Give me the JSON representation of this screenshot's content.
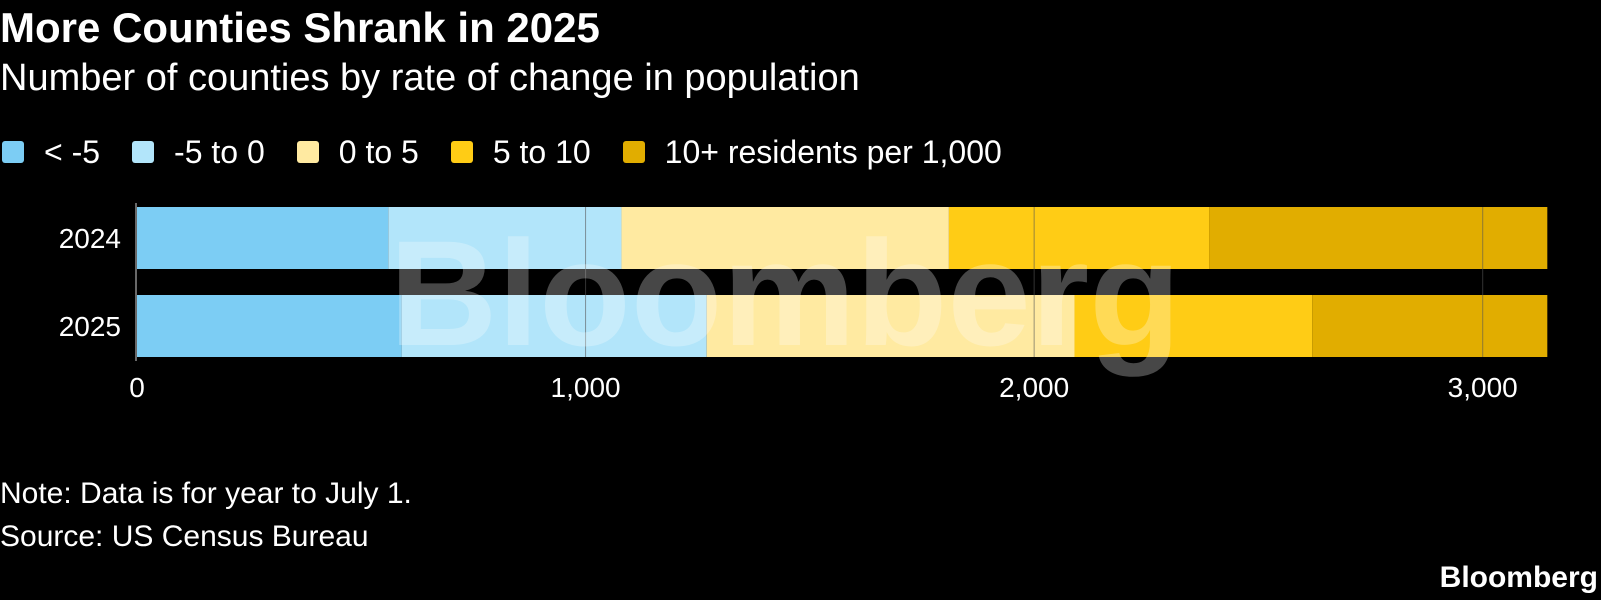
{
  "chart_data": {
    "type": "bar",
    "orientation": "horizontal",
    "stacked": true,
    "title": "More Counties Shrank in 2025",
    "subtitle": "Number of counties by rate of change in population",
    "categories": [
      "2024",
      "2025"
    ],
    "series": [
      {
        "name": "< -5",
        "color": "#7ccdf4",
        "values": [
          560,
          590
        ]
      },
      {
        "name": "-5 to 0",
        "color": "#b2e5fa",
        "values": [
          520,
          680
        ]
      },
      {
        "name": "0 to 5",
        "color": "#ffeaa1",
        "values": [
          730,
          820
        ]
      },
      {
        "name": "5 to 10",
        "color": "#ffcc15",
        "values": [
          580,
          530
        ]
      },
      {
        "name": "10+ residents per 1,000",
        "color": "#e1ad00",
        "values": [
          754,
          524
        ]
      }
    ],
    "xaxis": {
      "range": [
        0,
        3150
      ],
      "ticks": [
        0,
        1000,
        2000,
        3000
      ],
      "tick_labels": [
        "0",
        "1,000",
        "2,000",
        "3,000"
      ]
    },
    "legend_position": "top-left",
    "grid": true
  },
  "note": "Note: Data is for year to July 1.",
  "source": "Source: US Census Bureau",
  "brand": "Bloomberg",
  "watermark": "Bloomberg"
}
